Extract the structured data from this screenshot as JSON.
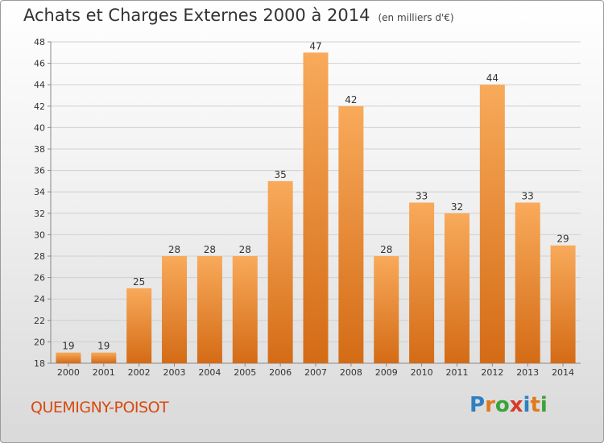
{
  "header": {
    "title": "Achats et Charges Externes 2000 à 2014",
    "subtitle": "(en milliers d'€)"
  },
  "footer": {
    "commune": "QUEMIGNY-POISOT",
    "brand": "Proxiti"
  },
  "colors": {
    "bar_light": "#f8aa5a",
    "bar_dark": "#d46b16",
    "commune": "#d84a10"
  },
  "chart_data": {
    "type": "bar",
    "title": "Achats et Charges Externes 2000 à 2014",
    "subtitle": "(en milliers d'€)",
    "categories": [
      "2000",
      "2001",
      "2002",
      "2003",
      "2004",
      "2005",
      "2006",
      "2007",
      "2008",
      "2009",
      "2010",
      "2011",
      "2012",
      "2013",
      "2014"
    ],
    "values": [
      19,
      19,
      25,
      28,
      28,
      28,
      35,
      47,
      42,
      28,
      33,
      32,
      44,
      33,
      29
    ],
    "ylim": [
      18,
      48
    ],
    "yticks": [
      18,
      20,
      22,
      24,
      26,
      28,
      30,
      32,
      34,
      36,
      38,
      40,
      42,
      44,
      46,
      48
    ],
    "grid": true,
    "xlabel": "",
    "ylabel": ""
  }
}
